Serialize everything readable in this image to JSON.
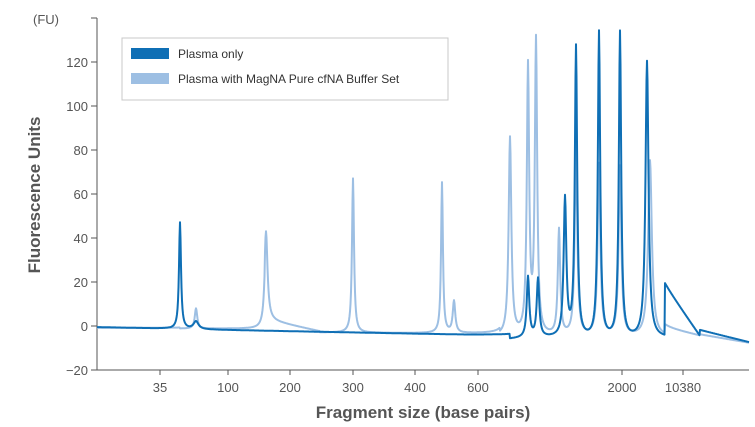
{
  "chart_data": {
    "type": "line",
    "xlabel": "Fragment size (base pairs)",
    "ylabel": "Fluorescence Units",
    "y_unit": "(FU)",
    "ylim": [
      -20,
      140
    ],
    "y_ticks": [
      -20,
      0,
      20,
      40,
      60,
      80,
      100,
      120
    ],
    "x_tick_labels": [
      "35",
      "100",
      "200",
      "300",
      "400",
      "600",
      "2000",
      "10380"
    ],
    "grid": false,
    "legend_position": "top-left",
    "colors": {
      "Plasma only": "#0f6fb5",
      "Plasma with MagNA Pure cfNA Buffer Set": "#9dbfe3"
    },
    "series": [
      {
        "name": "Plasma only",
        "peaks": [
          {
            "x": "35",
            "y": 47
          },
          {
            "x": "50",
            "y": 2
          },
          {
            "x": "~1000",
            "y": 22
          },
          {
            "x": "~1100",
            "y": 21
          },
          {
            "x": "~1250",
            "y": 57
          },
          {
            "x": "~1350",
            "y": 126
          },
          {
            "x": "~1700",
            "y": 133
          },
          {
            "x": "2000",
            "y": 133
          },
          {
            "x": "~4000",
            "y": 120
          }
        ]
      },
      {
        "name": "Plasma with MagNA Pure cfNA Buffer Set",
        "peaks": [
          {
            "x": "50",
            "y": 8
          },
          {
            "x": "~160",
            "y": 43
          },
          {
            "x": "300",
            "y": 67
          },
          {
            "x": "~480",
            "y": 65
          },
          {
            "x": "~520",
            "y": 11
          },
          {
            "x": "~800",
            "y": 85
          },
          {
            "x": "~1000",
            "y": 116
          },
          {
            "x": "~1050",
            "y": 128
          },
          {
            "x": "~1200",
            "y": 43
          },
          {
            "x": "~1350",
            "y": 81
          },
          {
            "x": "~1700",
            "y": 73
          },
          {
            "x": "2000",
            "y": 72
          },
          {
            "x": "~4000",
            "y": 75
          }
        ]
      }
    ]
  }
}
